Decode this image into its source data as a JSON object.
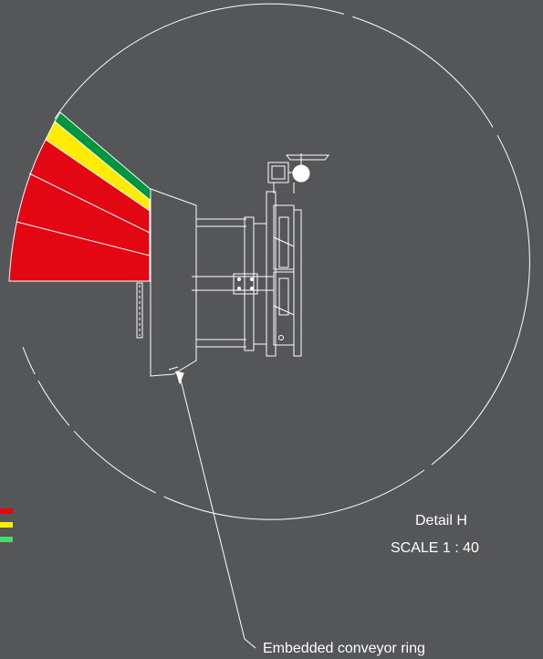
{
  "detail": {
    "title": "Detail H",
    "scale": "SCALE 1 : 40"
  },
  "callout": {
    "label": "Embedded conveyor ring"
  },
  "colors": {
    "background": "#555658",
    "linework": "#ffffff",
    "zone_red": "#e30613",
    "zone_yellow": "#ffec00",
    "zone_green": "#009640",
    "legend_red": "#e30613",
    "legend_yellow": "#ffec00",
    "legend_green": "#4cd964"
  },
  "legend": {
    "swatches": [
      "red",
      "yellow",
      "green"
    ]
  }
}
